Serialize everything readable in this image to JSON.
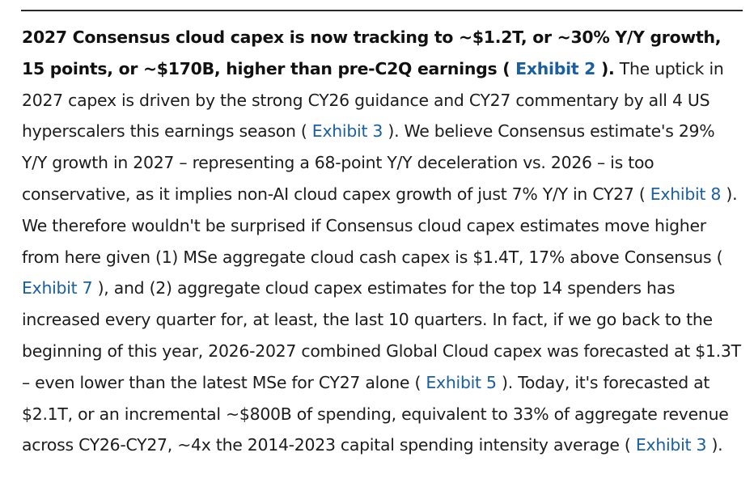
{
  "lead": {
    "sentence_part1": "2027 Consensus cloud capex is now tracking to ~$1.2T, or ~30% Y/Y growth, 15 points, or ~$170B, higher than pre-C2Q earnings (",
    "exhibit_ref": " Exhibit 2 ",
    "sentence_part2": ")."
  },
  "body": {
    "s1": " The uptick in 2027 capex is driven by the strong CY26 guidance and CY27 commentary by all 4 US hyperscalers this earnings season (",
    "ref1": " Exhibit 3 ",
    "s2": "). We believe Consensus estimate's 29% Y/Y growth in 2027 – representing a 68-point Y/Y deceleration vs. 2026 – is too conservative, as it implies non-AI cloud capex growth of just 7% Y/Y in CY27 (",
    "ref2": " Exhibit 8 ",
    "s3": "). We therefore wouldn't be surprised if Consensus cloud capex estimates move higher from here given (1) MSe aggregate cloud cash capex is $1.4T, 17% above Consensus (",
    "ref3": " Exhibit 7 ",
    "s4": "), and (2) aggregate cloud capex estimates for the top 14 spenders has increased every quarter for, at least, the last 10 quarters. In fact, if we go back to the beginning of this year, 2026-2027 combined Global Cloud capex was forecasted at $1.3T – even lower than the latest MSe for CY27 alone (",
    "ref4": " Exhibit 5 ",
    "s5": "). Today, it's forecasted at $2.1T, or an incremental ~$800B of spending, equivalent to 33% of aggregate revenue across CY26-CY27, ~4x the 2014-2023 capital spending intensity average (",
    "ref5": " Exhibit 3 ",
    "s6": ")."
  },
  "colors": {
    "link": "#1a5fa0",
    "text": "#1c1c1c",
    "rule": "#2a2a2a"
  }
}
